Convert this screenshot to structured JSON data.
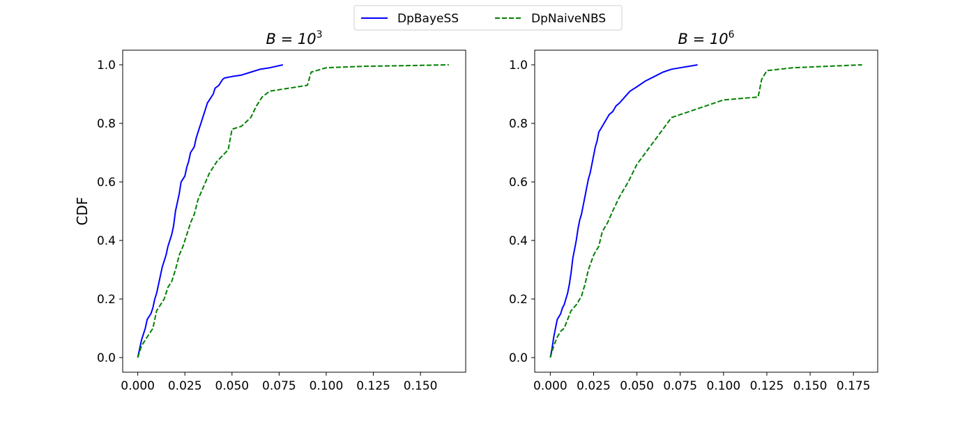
{
  "legend": {
    "location": "top-center",
    "entries": [
      {
        "label": "DpBayeSS",
        "color": "#0000ff",
        "linestyle": "solid"
      },
      {
        "label": "DpNaiveNBS",
        "color": "#008000",
        "linestyle": "dashed"
      }
    ]
  },
  "chart_data": [
    {
      "type": "line",
      "title": "B = 10^3",
      "title_base": "B = 10",
      "title_exp": "3",
      "xlabel": "",
      "ylabel": "CDF",
      "xlim": [
        -0.008,
        0.174
      ],
      "ylim": [
        -0.05,
        1.05
      ],
      "xticks": [
        "0.000",
        "0.025",
        "0.050",
        "0.075",
        "0.100",
        "0.125",
        "0.150"
      ],
      "yticks": [
        "0.0",
        "0.2",
        "0.4",
        "0.6",
        "0.8",
        "1.0"
      ],
      "grid": false,
      "series": [
        {
          "name": "DpBayeSS",
          "color": "#0000ff",
          "dashed": false,
          "x": [
            0.0,
            0.001,
            0.002,
            0.003,
            0.004,
            0.005,
            0.006,
            0.007,
            0.008,
            0.009,
            0.01,
            0.011,
            0.012,
            0.013,
            0.014,
            0.015,
            0.016,
            0.017,
            0.018,
            0.019,
            0.02,
            0.021,
            0.022,
            0.023,
            0.024,
            0.025,
            0.026,
            0.027,
            0.028,
            0.029,
            0.03,
            0.031,
            0.032,
            0.033,
            0.034,
            0.035,
            0.036,
            0.037,
            0.038,
            0.039,
            0.04,
            0.041,
            0.042,
            0.043,
            0.044,
            0.045,
            0.046,
            0.05,
            0.055,
            0.06,
            0.065,
            0.07,
            0.077
          ],
          "y": [
            0.0,
            0.03,
            0.06,
            0.08,
            0.1,
            0.13,
            0.14,
            0.15,
            0.17,
            0.2,
            0.22,
            0.25,
            0.28,
            0.31,
            0.33,
            0.35,
            0.38,
            0.4,
            0.42,
            0.45,
            0.5,
            0.53,
            0.56,
            0.6,
            0.61,
            0.62,
            0.65,
            0.67,
            0.7,
            0.71,
            0.72,
            0.75,
            0.77,
            0.79,
            0.81,
            0.83,
            0.85,
            0.87,
            0.88,
            0.89,
            0.9,
            0.92,
            0.925,
            0.93,
            0.94,
            0.95,
            0.955,
            0.96,
            0.965,
            0.975,
            0.985,
            0.99,
            1.0
          ]
        },
        {
          "name": "DpNaiveNBS",
          "color": "#008000",
          "dashed": true,
          "x": [
            0.0,
            0.002,
            0.004,
            0.006,
            0.008,
            0.01,
            0.012,
            0.014,
            0.016,
            0.018,
            0.02,
            0.022,
            0.024,
            0.026,
            0.028,
            0.03,
            0.032,
            0.034,
            0.036,
            0.038,
            0.04,
            0.042,
            0.045,
            0.048,
            0.05,
            0.055,
            0.06,
            0.063,
            0.066,
            0.07,
            0.08,
            0.09,
            0.092,
            0.1,
            0.12,
            0.14,
            0.165
          ],
          "y": [
            0.0,
            0.04,
            0.06,
            0.08,
            0.1,
            0.16,
            0.18,
            0.2,
            0.24,
            0.26,
            0.3,
            0.35,
            0.38,
            0.42,
            0.46,
            0.49,
            0.54,
            0.57,
            0.6,
            0.63,
            0.65,
            0.67,
            0.69,
            0.71,
            0.78,
            0.79,
            0.82,
            0.86,
            0.89,
            0.91,
            0.92,
            0.93,
            0.975,
            0.99,
            0.995,
            0.997,
            1.0
          ]
        }
      ]
    },
    {
      "type": "line",
      "title": "B = 10^6",
      "title_base": "B = 10",
      "title_exp": "6",
      "xlabel": "",
      "ylabel": "",
      "xlim": [
        -0.009,
        0.189
      ],
      "ylim": [
        -0.05,
        1.05
      ],
      "xticks": [
        "0.000",
        "0.025",
        "0.050",
        "0.075",
        "0.100",
        "0.125",
        "0.150",
        "0.175"
      ],
      "yticks": [
        "0.0",
        "0.2",
        "0.4",
        "0.6",
        "0.8",
        "1.0"
      ],
      "grid": false,
      "series": [
        {
          "name": "DpBayeSS",
          "color": "#0000ff",
          "dashed": false,
          "x": [
            0.0,
            0.001,
            0.002,
            0.003,
            0.004,
            0.005,
            0.006,
            0.007,
            0.008,
            0.009,
            0.01,
            0.011,
            0.012,
            0.013,
            0.014,
            0.015,
            0.016,
            0.017,
            0.018,
            0.019,
            0.02,
            0.021,
            0.022,
            0.023,
            0.024,
            0.025,
            0.026,
            0.027,
            0.028,
            0.03,
            0.032,
            0.034,
            0.036,
            0.038,
            0.04,
            0.043,
            0.046,
            0.05,
            0.055,
            0.06,
            0.065,
            0.07,
            0.075,
            0.08,
            0.085
          ],
          "y": [
            0.0,
            0.03,
            0.07,
            0.1,
            0.13,
            0.14,
            0.15,
            0.17,
            0.18,
            0.2,
            0.22,
            0.25,
            0.29,
            0.34,
            0.37,
            0.4,
            0.44,
            0.47,
            0.49,
            0.52,
            0.55,
            0.58,
            0.61,
            0.63,
            0.66,
            0.69,
            0.72,
            0.74,
            0.77,
            0.79,
            0.81,
            0.83,
            0.84,
            0.86,
            0.87,
            0.89,
            0.91,
            0.925,
            0.945,
            0.96,
            0.975,
            0.985,
            0.99,
            0.995,
            1.0
          ]
        },
        {
          "name": "DpNaiveNBS",
          "color": "#008000",
          "dashed": true,
          "x": [
            0.0,
            0.002,
            0.004,
            0.006,
            0.008,
            0.01,
            0.012,
            0.015,
            0.018,
            0.02,
            0.022,
            0.025,
            0.028,
            0.03,
            0.033,
            0.036,
            0.04,
            0.045,
            0.05,
            0.055,
            0.06,
            0.065,
            0.07,
            0.08,
            0.09,
            0.1,
            0.11,
            0.12,
            0.122,
            0.125,
            0.14,
            0.16,
            0.18
          ],
          "y": [
            0.0,
            0.04,
            0.07,
            0.09,
            0.1,
            0.13,
            0.16,
            0.18,
            0.21,
            0.25,
            0.3,
            0.35,
            0.38,
            0.43,
            0.46,
            0.5,
            0.55,
            0.6,
            0.66,
            0.7,
            0.74,
            0.78,
            0.82,
            0.84,
            0.86,
            0.88,
            0.885,
            0.89,
            0.95,
            0.98,
            0.99,
            0.995,
            1.0
          ]
        }
      ]
    }
  ]
}
